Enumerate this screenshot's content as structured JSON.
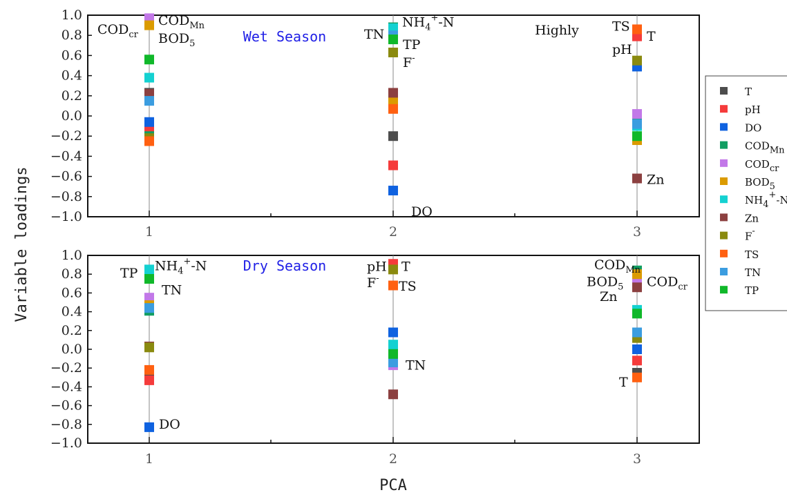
{
  "chart_data": [
    {
      "type": "scatter",
      "title": "Wet Season",
      "corner_label": "Highly",
      "xlabel": "PCA",
      "ylabel": "Variable loadings",
      "x": [
        "1",
        "2",
        "3"
      ],
      "ylim": [
        -1.0,
        1.0
      ],
      "yticks": [
        "1.0",
        "0.8",
        "0.6",
        "0.4",
        "0.2",
        "0.0",
        "-0.2",
        "-0.4",
        "-0.6",
        "-0.8",
        "-1.0"
      ],
      "grid": false,
      "series": [
        {
          "name": "T",
          "values": [
            0.23,
            -0.2,
            0.83
          ]
        },
        {
          "name": "pH",
          "values": [
            -0.12,
            -0.49,
            0.79
          ]
        },
        {
          "name": "DO",
          "values": [
            -0.06,
            -0.74,
            0.49
          ]
        },
        {
          "name": "COD_Mn",
          "values": [
            -0.2,
            0.88,
            -0.05
          ]
        },
        {
          "name": "COD_cr",
          "values": [
            0.97,
            0.86,
            0.02
          ]
        },
        {
          "name": "BOD_5",
          "values": [
            0.9,
            0.16,
            -0.24
          ]
        },
        {
          "name": "NH_4^+-N",
          "values": [
            0.38,
            0.87,
            -0.1
          ]
        },
        {
          "name": "Zn",
          "values": [
            0.22,
            0.23,
            -0.62
          ]
        },
        {
          "name": "F^-",
          "values": [
            -0.22,
            0.63,
            0.55
          ]
        },
        {
          "name": "TS",
          "values": [
            -0.25,
            0.07,
            0.86
          ]
        },
        {
          "name": "TN",
          "values": [
            0.15,
            0.8,
            -0.08
          ]
        },
        {
          "name": "TP",
          "values": [
            0.56,
            0.76,
            -0.2
          ]
        }
      ],
      "annotations": [
        {
          "text": "COD",
          "sub": "cr",
          "x": "1",
          "y": 0.85
        },
        {
          "text": "COD",
          "sub": "Mn",
          "x": "1",
          "y": 0.94
        },
        {
          "text": "BOD",
          "sub": "5",
          "x": "1",
          "y": 0.76
        },
        {
          "text": "TN",
          "x": "2",
          "y": 0.8
        },
        {
          "text": "NH",
          "sub": "4",
          "sup": "+",
          "tail": "-N",
          "x": "2",
          "y": 0.92
        },
        {
          "text": "TP",
          "x": "2",
          "y": 0.7
        },
        {
          "text": "F",
          "sup": "-",
          "x": "2",
          "y": 0.52
        },
        {
          "text": "DO",
          "x": "2",
          "y": -0.96
        },
        {
          "text": "TS",
          "x": "3",
          "y": 0.88
        },
        {
          "text": "T",
          "x": "3",
          "y": 0.78
        },
        {
          "text": "pH",
          "x": "3",
          "y": 0.65
        },
        {
          "text": "Zn",
          "x": "3",
          "y": -0.64
        }
      ]
    },
    {
      "type": "scatter",
      "title": "Dry Season",
      "xlabel": "PCA",
      "ylabel": "Variable loadings",
      "x": [
        "1",
        "2",
        "3"
      ],
      "ylim": [
        -1.0,
        1.0
      ],
      "yticks": [
        "1.0",
        "0.8",
        "0.6",
        "0.4",
        "0.2",
        "0.0",
        "-0.2",
        "-0.4",
        "-0.6",
        "-0.8",
        "-1.0"
      ],
      "grid": false,
      "series": [
        {
          "name": "T",
          "values": [
            -0.28,
            0.9,
            -0.25
          ]
        },
        {
          "name": "pH",
          "values": [
            -0.33,
            0.91,
            -0.12
          ]
        },
        {
          "name": "DO",
          "values": [
            -0.83,
            0.18,
            0.0
          ]
        },
        {
          "name": "COD_Mn",
          "values": [
            0.41,
            -0.1,
            0.84
          ]
        },
        {
          "name": "COD_cr",
          "values": [
            0.55,
            -0.17,
            0.75
          ]
        },
        {
          "name": "BOD_5",
          "values": [
            0.47,
            -0.12,
            0.8
          ]
        },
        {
          "name": "NH_4^+-N",
          "values": [
            0.85,
            0.05,
            0.42
          ]
        },
        {
          "name": "Zn",
          "values": [
            0.03,
            -0.48,
            0.66
          ]
        },
        {
          "name": "F^-",
          "values": [
            0.02,
            0.85,
            0.12
          ]
        },
        {
          "name": "TS",
          "values": [
            -0.22,
            0.68,
            -0.3
          ]
        },
        {
          "name": "TN",
          "values": [
            0.44,
            -0.14,
            0.18
          ]
        },
        {
          "name": "TP",
          "values": [
            0.75,
            -0.05,
            0.38
          ]
        }
      ],
      "annotations": [
        {
          "text": "TP",
          "x": "1",
          "y": 0.8
        },
        {
          "text": "NH",
          "sub": "4",
          "sup": "+",
          "tail": "-N",
          "x": "1",
          "y": 0.88
        },
        {
          "text": "TN",
          "x": "1",
          "y": 0.62
        },
        {
          "text": "DO",
          "x": "1",
          "y": -0.81
        },
        {
          "text": "pH",
          "x": "2",
          "y": 0.87
        },
        {
          "text": "T",
          "x": "2",
          "y": 0.87
        },
        {
          "text": "F",
          "sup": "-",
          "x": "2",
          "y": 0.7
        },
        {
          "text": "TS",
          "x": "2",
          "y": 0.66
        },
        {
          "text": "TN",
          "x": "2",
          "y": -0.18
        },
        {
          "text": "COD",
          "sub": "Mn",
          "x": "3",
          "y": 0.89
        },
        {
          "text": "COD",
          "sub": "cr",
          "x": "3",
          "y": 0.71
        },
        {
          "text": "BOD",
          "sub": "5",
          "x": "3",
          "y": 0.71
        },
        {
          "text": "Zn",
          "x": "3",
          "y": 0.55
        },
        {
          "text": "T",
          "x": "3",
          "y": -0.36
        }
      ]
    }
  ],
  "legend": {
    "placement": "right",
    "items": [
      {
        "key": "T",
        "text": "T",
        "color": "#4d4d4d"
      },
      {
        "key": "pH",
        "text": "pH",
        "color": "#f53b3b"
      },
      {
        "key": "DO",
        "text": "DO",
        "color": "#0f62e0"
      },
      {
        "key": "COD_Mn",
        "text": "COD",
        "sub": "Mn",
        "color": "#119e62"
      },
      {
        "key": "COD_cr",
        "text": "COD",
        "sub": "cr",
        "color": "#c278e8"
      },
      {
        "key": "BOD_5",
        "text": "BOD",
        "sub": "5",
        "color": "#db9b00"
      },
      {
        "key": "NH_4^+-N",
        "text": "NH",
        "sub": "4",
        "sup": "+",
        "tail": "-N",
        "color": "#14d1d1"
      },
      {
        "key": "Zn",
        "text": "Zn",
        "color": "#8c4040"
      },
      {
        "key": "F^-",
        "text": "F",
        "sup": "-",
        "color": "#8a8a0f"
      },
      {
        "key": "TS",
        "text": "TS",
        "color": "#ff6011"
      },
      {
        "key": "TN",
        "text": "TN",
        "color": "#3b9de0"
      },
      {
        "key": "TP",
        "text": "TP",
        "color": "#10b82a"
      }
    ]
  }
}
